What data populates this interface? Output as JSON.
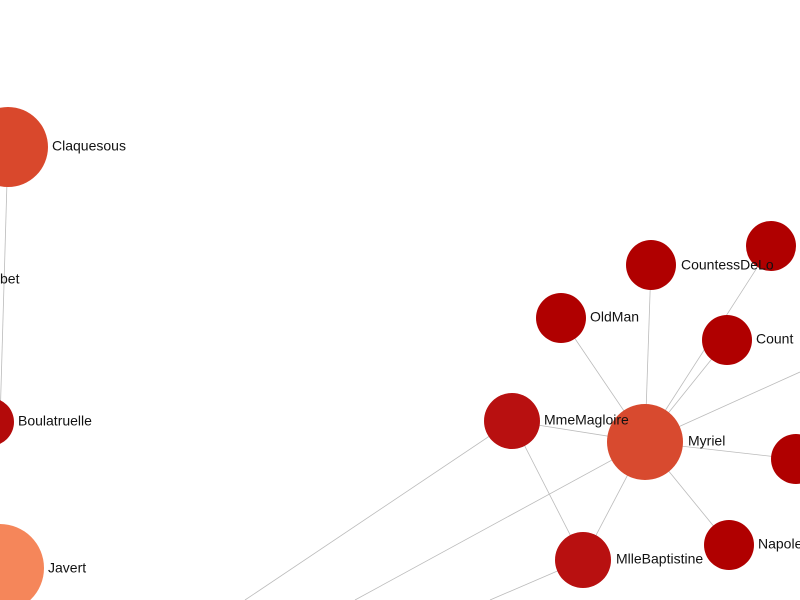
{
  "nodes": [
    {
      "label": "Claquesous"
    },
    {
      "label": "bet"
    },
    {
      "label": "Boulatruelle"
    },
    {
      "label": "Javert"
    },
    {
      "label": "MmeMagloire"
    },
    {
      "label": "Myriel"
    },
    {
      "label": "OldMan"
    },
    {
      "label": "CountessDeLo"
    },
    {
      "label": "Count"
    },
    {
      "label": "Napole"
    },
    {
      "label": "MlleBaptistine"
    }
  ]
}
